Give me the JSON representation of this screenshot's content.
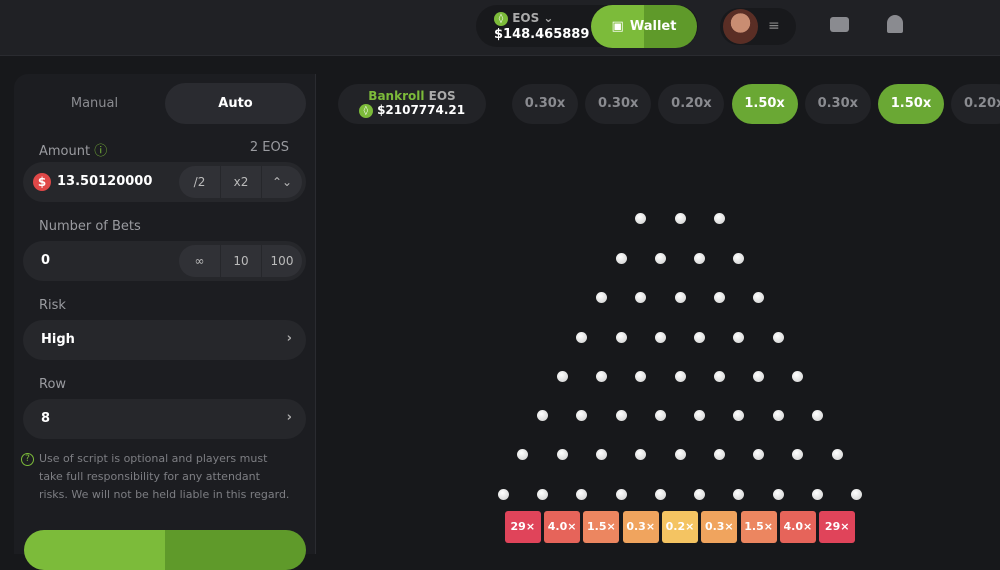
{
  "header": {
    "currency": "EOS",
    "balance": "$148.465889",
    "wallet_label": "Wallet"
  },
  "panel": {
    "tabs": [
      "Manual",
      "Auto"
    ],
    "active_tab": "Auto",
    "amount_label": "Amount",
    "amount_unit": "2 EOS",
    "amount_value": "13.50120000",
    "half": "/2",
    "double": "x2",
    "bets_label": "Number of Bets",
    "bets_value": "0",
    "bets_opts": [
      "∞",
      "10",
      "100"
    ],
    "risk_label": "Risk",
    "risk_value": "High",
    "row_label": "Row",
    "row_value": "8",
    "note": "Use of script is optional and players must take full responsibility for any attendant risks. We will not be held liable in this regard."
  },
  "bankroll": {
    "label": "Bankroll",
    "currency": "EOS",
    "value": "$2107774.21"
  },
  "history": [
    {
      "v": "0.30x",
      "win": false
    },
    {
      "v": "0.30x",
      "win": false
    },
    {
      "v": "0.20x",
      "win": false
    },
    {
      "v": "1.50x",
      "win": true
    },
    {
      "v": "0.30x",
      "win": false
    },
    {
      "v": "1.50x",
      "win": true
    },
    {
      "v": "0.20x",
      "win": false
    }
  ],
  "board": {
    "rows": 8,
    "multipliers": [
      "29×",
      "4.0×",
      "1.5×",
      "0.3×",
      "0.2×",
      "0.3×",
      "1.5×",
      "4.0×",
      "29×"
    ],
    "colors": [
      "#e0445a",
      "#e6645a",
      "#ec8660",
      "#f0a45e",
      "#f4c462",
      "#f0a45e",
      "#ec8660",
      "#e6645a",
      "#e0445a"
    ]
  },
  "colors": {
    "accent": "#7cbb3a"
  }
}
